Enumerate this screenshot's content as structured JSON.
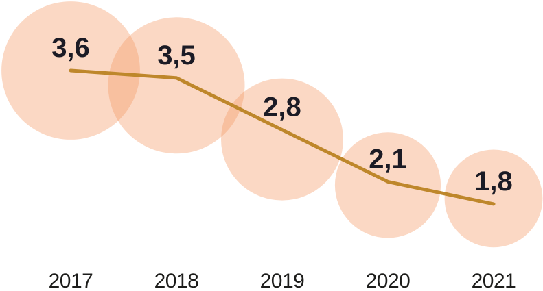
{
  "chart_data": {
    "type": "line",
    "subtype": "line-with-proportional-bubbles",
    "categories": [
      "2017",
      "2018",
      "2019",
      "2020",
      "2021"
    ],
    "values": [
      3.6,
      3.5,
      2.8,
      2.1,
      1.8
    ],
    "value_labels": [
      "3,6",
      "3,5",
      "2,8",
      "2,1",
      "1,8"
    ],
    "decimal_separator": ",",
    "title": "",
    "xlabel": "",
    "ylabel": "",
    "grid": false,
    "legend": false,
    "axes_drawn": false,
    "bubble_area_note": "bubble radius proportional to sqrt(value), bubbles centered on data points, overlapping translucently",
    "colors": {
      "background": "#ffffff",
      "bubble_fill": "#F49864",
      "bubble_opacity": 0.38,
      "line": "#BE872B",
      "value_label": "#1B1B25",
      "year_label": "#1D1D1B"
    }
  }
}
